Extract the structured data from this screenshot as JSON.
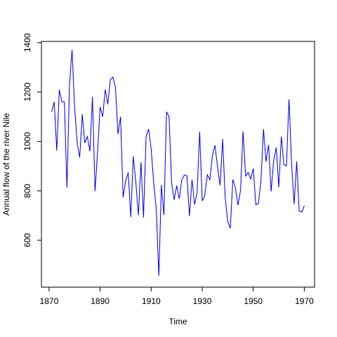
{
  "chart_data": {
    "type": "line",
    "title": "",
    "xlabel": "Time",
    "ylabel": "Annual flow of the river Nile",
    "xlim": [
      1867,
      1974
    ],
    "ylim": [
      410,
      1405
    ],
    "x_ticks": [
      1870,
      1890,
      1910,
      1930,
      1950,
      1970
    ],
    "y_ticks": [
      600,
      800,
      1000,
      1200,
      1400
    ],
    "grid": false,
    "legend": "none",
    "line_color": "#0000ff",
    "series": [
      {
        "x": [
          1871,
          1872,
          1873,
          1874,
          1875,
          1876,
          1877,
          1878,
          1879,
          1880,
          1881,
          1882,
          1883,
          1884,
          1885,
          1886,
          1887,
          1888,
          1889,
          1890,
          1891,
          1892,
          1893,
          1894,
          1895,
          1896,
          1897,
          1898,
          1899,
          1900,
          1901,
          1902,
          1903,
          1904,
          1905,
          1906,
          1907,
          1908,
          1909,
          1910,
          1911,
          1912,
          1913,
          1914,
          1915,
          1916,
          1917,
          1918,
          1919,
          1920,
          1921,
          1922,
          1923,
          1924,
          1925,
          1926,
          1927,
          1928,
          1929,
          1930,
          1931,
          1932,
          1933,
          1934,
          1935,
          1936,
          1937,
          1938,
          1939,
          1940,
          1941,
          1942,
          1943,
          1944,
          1945,
          1946,
          1947,
          1948,
          1949,
          1950,
          1951,
          1952,
          1953,
          1954,
          1955,
          1956,
          1957,
          1958,
          1959,
          1960,
          1961,
          1962,
          1963,
          1964,
          1965,
          1966,
          1967,
          1968,
          1969,
          1970
        ],
        "values": [
          1120,
          1160,
          963,
          1210,
          1160,
          1160,
          813,
          1230,
          1370,
          1140,
          995,
          935,
          1110,
          994,
          1020,
          960,
          1180,
          799,
          958,
          1140,
          1100,
          1210,
          1150,
          1250,
          1260,
          1220,
          1030,
          1100,
          774,
          840,
          874,
          694,
          940,
          833,
          701,
          916,
          692,
          1020,
          1050,
          969,
          831,
          726,
          456,
          824,
          702,
          1120,
          1100,
          832,
          764,
          821,
          768,
          845,
          864,
          862,
          698,
          845,
          744,
          796,
          1040,
          759,
          781,
          865,
          845,
          944,
          984,
          897,
          822,
          1010,
          771,
          676,
          649,
          846,
          812,
          742,
          801,
          1040,
          860,
          874,
          848,
          890,
          744,
          749,
          838,
          1050,
          918,
          986,
          797,
          923,
          975,
          815,
          1020,
          906,
          901,
          1170,
          912,
          746,
          919,
          718,
          714,
          740
        ]
      }
    ]
  }
}
